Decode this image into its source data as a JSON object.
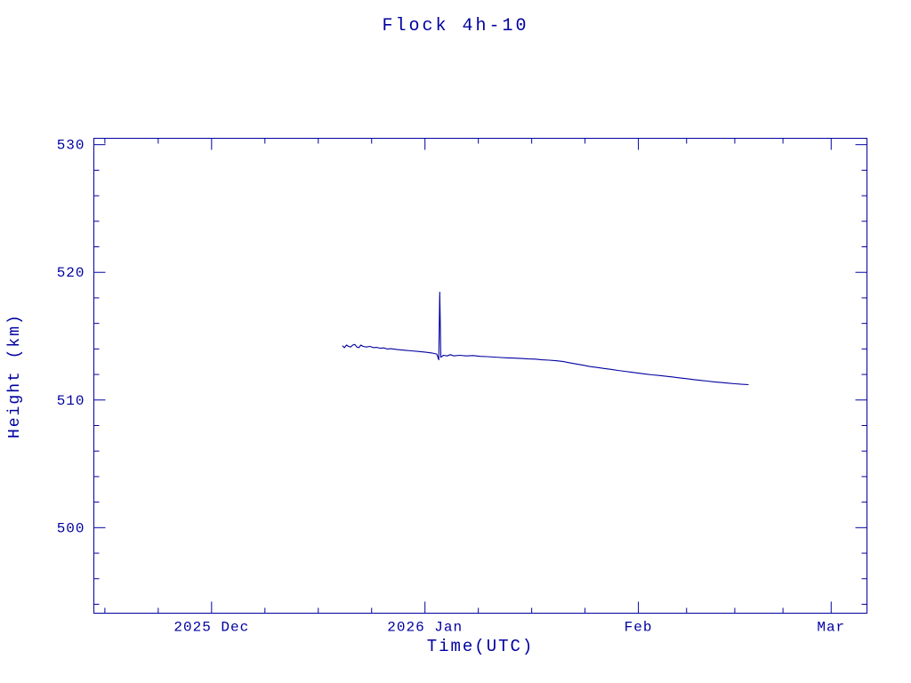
{
  "page": {
    "background": "#ffffff"
  },
  "chart_data": {
    "type": "line",
    "title": "Flock 4h-10",
    "xlabel": "Time(UTC)",
    "ylabel": "Height (km)",
    "line_color": "#0000a0",
    "grid": false,
    "legend": "none",
    "x_axis": {
      "unit": "days since 2025-12-01",
      "range": [
        -17.1,
        95.2
      ],
      "major_ticks": [
        {
          "value": 0,
          "label": "2025 Dec"
        },
        {
          "value": 31,
          "label": "2026 Jan"
        },
        {
          "value": 62,
          "label": "Feb"
        },
        {
          "value": 90,
          "label": "Mar"
        }
      ],
      "minor_ticks": [
        -15.5,
        -7.75,
        7.75,
        15.5,
        23.25,
        38.75,
        46.5,
        54.25,
        69,
        76,
        83
      ]
    },
    "y_axis": {
      "range": [
        493.3,
        530.5
      ],
      "major_ticks": [
        {
          "value": 500,
          "label": "500"
        },
        {
          "value": 510,
          "label": "510"
        },
        {
          "value": 520,
          "label": "520"
        },
        {
          "value": 530,
          "label": "530"
        }
      ],
      "minor_step": 2
    },
    "series": [
      {
        "name": "Flock 4h-10 height",
        "points": [
          [
            19.0,
            514.25
          ],
          [
            19.3,
            514.1
          ],
          [
            19.6,
            514.3
          ],
          [
            19.9,
            514.2
          ],
          [
            20.2,
            514.15
          ],
          [
            20.5,
            514.3
          ],
          [
            20.8,
            514.35
          ],
          [
            21.1,
            514.15
          ],
          [
            21.4,
            514.1
          ],
          [
            21.7,
            514.3
          ],
          [
            22.0,
            514.2
          ],
          [
            22.5,
            514.15
          ],
          [
            23.0,
            514.2
          ],
          [
            23.5,
            514.1
          ],
          [
            24.0,
            514.12
          ],
          [
            24.5,
            514.05
          ],
          [
            25.0,
            514.08
          ],
          [
            25.5,
            514.0
          ],
          [
            26.0,
            514.02
          ],
          [
            27.0,
            513.95
          ],
          [
            28.0,
            513.9
          ],
          [
            29.0,
            513.85
          ],
          [
            30.0,
            513.8
          ],
          [
            31.0,
            513.75
          ],
          [
            32.0,
            513.68
          ],
          [
            32.7,
            513.6
          ],
          [
            33.0,
            513.15
          ],
          [
            33.15,
            518.45
          ],
          [
            33.3,
            513.35
          ],
          [
            33.7,
            513.5
          ],
          [
            34.2,
            513.45
          ],
          [
            34.7,
            513.55
          ],
          [
            35.2,
            513.45
          ],
          [
            36.0,
            513.5
          ],
          [
            37.0,
            513.45
          ],
          [
            38.0,
            513.48
          ],
          [
            39.0,
            513.42
          ],
          [
            40.0,
            513.4
          ],
          [
            41.0,
            513.36
          ],
          [
            42.0,
            513.33
          ],
          [
            43.0,
            513.3
          ],
          [
            44.0,
            513.28
          ],
          [
            45.0,
            513.25
          ],
          [
            46.0,
            513.22
          ],
          [
            47.0,
            513.2
          ],
          [
            48.0,
            513.15
          ],
          [
            49.0,
            513.12
          ],
          [
            50.0,
            513.08
          ],
          [
            51.0,
            513.02
          ],
          [
            52.0,
            512.92
          ],
          [
            53.0,
            512.82
          ],
          [
            54.0,
            512.72
          ],
          [
            55.0,
            512.62
          ],
          [
            56.0,
            512.55
          ],
          [
            57.0,
            512.47
          ],
          [
            58.0,
            512.4
          ],
          [
            59.0,
            512.32
          ],
          [
            60.0,
            512.25
          ],
          [
            61.0,
            512.17
          ],
          [
            62.0,
            512.1
          ],
          [
            63.0,
            512.03
          ],
          [
            64.0,
            511.97
          ],
          [
            65.0,
            511.92
          ],
          [
            66.0,
            511.86
          ],
          [
            67.0,
            511.8
          ],
          [
            68.0,
            511.73
          ],
          [
            69.0,
            511.67
          ],
          [
            70.0,
            511.6
          ],
          [
            71.0,
            511.54
          ],
          [
            72.0,
            511.48
          ],
          [
            73.0,
            511.42
          ],
          [
            74.0,
            511.37
          ],
          [
            75.0,
            511.32
          ],
          [
            76.0,
            511.27
          ],
          [
            77.0,
            511.23
          ],
          [
            78.0,
            511.2
          ]
        ]
      }
    ]
  }
}
